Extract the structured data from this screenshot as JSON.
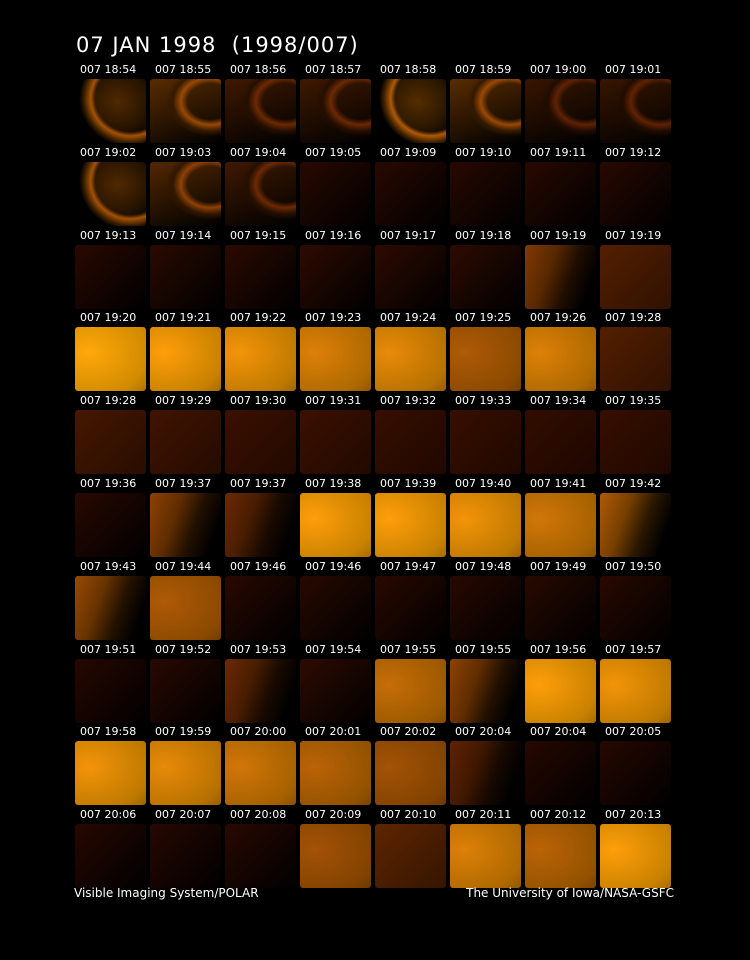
{
  "title": "07 JAN 1998  (1998/007)",
  "footer": {
    "left": "Visible Imaging System/POLAR",
    "right": "The University of Iowa/NASA-GSFC"
  },
  "colors": {
    "background": "#000000",
    "image_hue_dark": "#3a1000",
    "image_hue_bright": "#ffa800"
  },
  "frames": [
    {
      "t": "007 18:54",
      "style": "arc",
      "b": 0.55
    },
    {
      "t": "007 18:55",
      "style": "arc2",
      "b": 0.5
    },
    {
      "t": "007 18:56",
      "style": "arc2",
      "b": 0.3
    },
    {
      "t": "007 18:57",
      "style": "arc2",
      "b": 0.3
    },
    {
      "t": "007 18:58",
      "style": "arc",
      "b": 0.6
    },
    {
      "t": "007 18:59",
      "style": "arc2",
      "b": 0.5
    },
    {
      "t": "007 19:00",
      "style": "arc2",
      "b": 0.25
    },
    {
      "t": "007 19:01",
      "style": "arc2",
      "b": 0.25
    },
    {
      "t": "007 19:02",
      "style": "arc",
      "b": 0.55
    },
    {
      "t": "007 19:03",
      "style": "arc2",
      "b": 0.45
    },
    {
      "t": "007 19:04",
      "style": "arc2",
      "b": 0.3
    },
    {
      "t": "007 19:05",
      "style": "dark",
      "b": 0.05
    },
    {
      "t": "007 19:09",
      "style": "dark",
      "b": 0.05
    },
    {
      "t": "007 19:10",
      "style": "dark",
      "b": 0.05
    },
    {
      "t": "007 19:11",
      "style": "dark",
      "b": 0.05
    },
    {
      "t": "007 19:12",
      "style": "dark",
      "b": 0.05
    },
    {
      "t": "007 19:13",
      "style": "dark",
      "b": 0.05
    },
    {
      "t": "007 19:14",
      "style": "dark",
      "b": 0.06
    },
    {
      "t": "007 19:15",
      "style": "dark",
      "b": 0.07
    },
    {
      "t": "007 19:16",
      "style": "dark",
      "b": 0.08
    },
    {
      "t": "007 19:17",
      "style": "dark",
      "b": 0.08
    },
    {
      "t": "007 19:18",
      "style": "dark",
      "b": 0.08
    },
    {
      "t": "007 19:19",
      "style": "diag",
      "b": 0.4
    },
    {
      "t": "007 19:19",
      "style": "dim",
      "b": 0.25
    },
    {
      "t": "007 19:20",
      "style": "bright",
      "b": 1.0
    },
    {
      "t": "007 19:21",
      "style": "bright",
      "b": 0.95
    },
    {
      "t": "007 19:22",
      "style": "bright",
      "b": 0.9
    },
    {
      "t": "007 19:23",
      "style": "bright",
      "b": 0.8
    },
    {
      "t": "007 19:24",
      "style": "bright",
      "b": 0.85
    },
    {
      "t": "007 19:25",
      "style": "bright",
      "b": 0.6
    },
    {
      "t": "007 19:26",
      "style": "bright",
      "b": 0.8
    },
    {
      "t": "007 19:28",
      "style": "dim",
      "b": 0.25
    },
    {
      "t": "007 19:28",
      "style": "dim",
      "b": 0.18
    },
    {
      "t": "007 19:29",
      "style": "dim",
      "b": 0.15
    },
    {
      "t": "007 19:30",
      "style": "dim",
      "b": 0.12
    },
    {
      "t": "007 19:31",
      "style": "dim",
      "b": 0.12
    },
    {
      "t": "007 19:32",
      "style": "dim",
      "b": 0.1
    },
    {
      "t": "007 19:33",
      "style": "dim",
      "b": 0.1
    },
    {
      "t": "007 19:34",
      "style": "dim",
      "b": 0.08
    },
    {
      "t": "007 19:35",
      "style": "dim",
      "b": 0.1
    },
    {
      "t": "007 19:36",
      "style": "dark",
      "b": 0.05
    },
    {
      "t": "007 19:37",
      "style": "diag",
      "b": 0.45
    },
    {
      "t": "007 19:37",
      "style": "diag",
      "b": 0.3
    },
    {
      "t": "007 19:38",
      "style": "bright",
      "b": 0.95
    },
    {
      "t": "007 19:39",
      "style": "bright",
      "b": 0.95
    },
    {
      "t": "007 19:40",
      "style": "bright",
      "b": 0.9
    },
    {
      "t": "007 19:41",
      "style": "bright",
      "b": 0.75
    },
    {
      "t": "007 19:42",
      "style": "diag",
      "b": 0.6
    },
    {
      "t": "007 19:43",
      "style": "diag",
      "b": 0.5
    },
    {
      "t": "007 19:44",
      "style": "bright",
      "b": 0.6
    },
    {
      "t": "007 19:46",
      "style": "dark",
      "b": 0.05
    },
    {
      "t": "007 19:46",
      "style": "dark",
      "b": 0.05
    },
    {
      "t": "007 19:47",
      "style": "dark",
      "b": 0.05
    },
    {
      "t": "007 19:48",
      "style": "dark",
      "b": 0.05
    },
    {
      "t": "007 19:49",
      "style": "dark",
      "b": 0.05
    },
    {
      "t": "007 19:50",
      "style": "dark",
      "b": 0.05
    },
    {
      "t": "007 19:51",
      "style": "dark",
      "b": 0.04
    },
    {
      "t": "007 19:52",
      "style": "dark",
      "b": 0.05
    },
    {
      "t": "007 19:53",
      "style": "diag",
      "b": 0.3
    },
    {
      "t": "007 19:54",
      "style": "dark",
      "b": 0.08
    },
    {
      "t": "007 19:55",
      "style": "bright",
      "b": 0.7
    },
    {
      "t": "007 19:55",
      "style": "diag",
      "b": 0.45
    },
    {
      "t": "007 19:56",
      "style": "bright",
      "b": 0.95
    },
    {
      "t": "007 19:57",
      "style": "bright",
      "b": 0.9
    },
    {
      "t": "007 19:58",
      "style": "bright",
      "b": 0.9
    },
    {
      "t": "007 19:59",
      "style": "bright",
      "b": 0.85
    },
    {
      "t": "007 20:00",
      "style": "bright",
      "b": 0.75
    },
    {
      "t": "007 20:01",
      "style": "bright",
      "b": 0.65
    },
    {
      "t": "007 20:02",
      "style": "bright",
      "b": 0.55
    },
    {
      "t": "007 20:04",
      "style": "diag",
      "b": 0.25
    },
    {
      "t": "007 20:04",
      "style": "dark",
      "b": 0.04
    },
    {
      "t": "007 20:05",
      "style": "dark",
      "b": 0.04
    },
    {
      "t": "007 20:06",
      "style": "dark",
      "b": 0.04
    },
    {
      "t": "007 20:07",
      "style": "dark",
      "b": 0.04
    },
    {
      "t": "007 20:08",
      "style": "dark",
      "b": 0.05
    },
    {
      "t": "007 20:09",
      "style": "bright",
      "b": 0.55
    },
    {
      "t": "007 20:10",
      "style": "dim",
      "b": 0.3
    },
    {
      "t": "007 20:11",
      "style": "bright",
      "b": 0.8
    },
    {
      "t": "007 20:12",
      "style": "bright",
      "b": 0.65
    },
    {
      "t": "007 20:13",
      "style": "bright",
      "b": 0.95
    }
  ]
}
